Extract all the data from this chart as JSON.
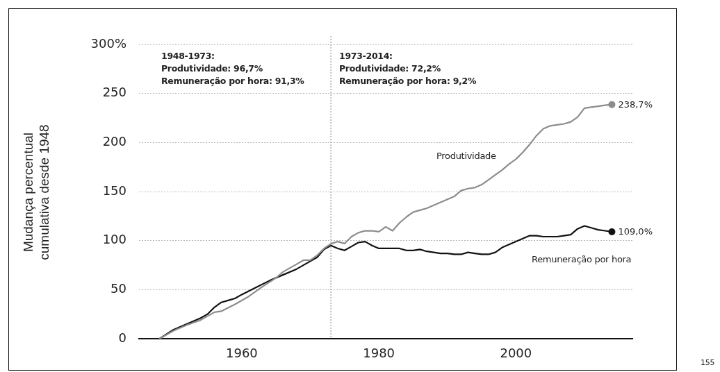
{
  "chart_data": {
    "type": "line",
    "ylabel": "Mudança percentual cumulativa desde 1948",
    "xlim": [
      1945,
      2017
    ],
    "xticks": [
      1960,
      1980,
      2000
    ],
    "ylim": [
      0,
      300
    ],
    "yticks": [
      0,
      50,
      100,
      150,
      200,
      250,
      {
        "value": 300,
        "label": "300%"
      }
    ],
    "grid": "y",
    "legend": false,
    "marker": "none",
    "line_style": "solid",
    "tick_labels": true,
    "ref_lines": [
      {
        "axis": "x",
        "value": 1973,
        "color": "#999999",
        "line_style": "dotted"
      }
    ],
    "annotations": [
      "1948-1973:\nProdutividade: 96,7%\nRemuneração por hora: 91,3%",
      "1973-2014:\nProdutividade: 72,2%\nRemuneração por hora: 9,2%",
      "155"
    ],
    "series": [
      {
        "name": "Produtividade",
        "color": "#8c8c8c",
        "x": [
          1948,
          1950,
          1952,
          1954,
          1956,
          1957,
          1959,
          1961,
          1963,
          1965,
          1966,
          1968,
          1969,
          1970,
          1971,
          1972,
          1973,
          1974,
          1975,
          1976,
          1977,
          1978,
          1979,
          1980,
          1981,
          1982,
          1983,
          1984,
          1985,
          1986,
          1987,
          1988,
          1989,
          1990,
          1991,
          1992,
          1993,
          1994,
          1995,
          1996,
          1997,
          1998,
          1999,
          2000,
          2001,
          2002,
          2003,
          2004,
          2005,
          2006,
          2007,
          2008,
          2009,
          2010,
          2011,
          2012,
          2013,
          2014
        ],
        "values": [
          0,
          8,
          14,
          19,
          27,
          28,
          35,
          43,
          53,
          62,
          68,
          76,
          80,
          80,
          85,
          92,
          96.7,
          99,
          97,
          104,
          108,
          110,
          110,
          109,
          114,
          110,
          118,
          124,
          129,
          131,
          133,
          136,
          139,
          142,
          145,
          151,
          153,
          154,
          157,
          162,
          167,
          172,
          178,
          183,
          190,
          198,
          207,
          214,
          217,
          218,
          219,
          221,
          226,
          235,
          236,
          237,
          238,
          238.7
        ],
        "value_labels": [
          null,
          null,
          null,
          null,
          null,
          null,
          null,
          null,
          null,
          null,
          null,
          null,
          null,
          null,
          null,
          null,
          null,
          null,
          null,
          null,
          null,
          null,
          null,
          null,
          null,
          null,
          null,
          null,
          null,
          null,
          null,
          null,
          null,
          null,
          null,
          null,
          null,
          null,
          null,
          null,
          null,
          null,
          null,
          null,
          null,
          null,
          null,
          null,
          null,
          null,
          null,
          null,
          null,
          null,
          null,
          null,
          null,
          "238,7%"
        ]
      },
      {
        "name": "Remuneração por hora",
        "color": "#111111",
        "x": [
          1948,
          1950,
          1952,
          1954,
          1955,
          1956,
          1957,
          1958,
          1959,
          1960,
          1962,
          1964,
          1966,
          1968,
          1970,
          1971,
          1972,
          1973,
          1974,
          1975,
          1976,
          1977,
          1978,
          1979,
          1980,
          1981,
          1982,
          1983,
          1984,
          1985,
          1986,
          1987,
          1988,
          1989,
          1990,
          1991,
          1992,
          1993,
          1994,
          1995,
          1996,
          1997,
          1998,
          1999,
          2000,
          2001,
          2002,
          2003,
          2004,
          2005,
          2006,
          2007,
          2008,
          2009,
          2010,
          2011,
          2012,
          2013,
          2014
        ],
        "values": [
          0,
          9,
          15,
          21,
          25,
          32,
          37,
          39,
          41,
          45,
          52,
          59,
          65,
          71,
          79,
          83,
          91,
          95,
          92,
          90,
          94,
          98,
          99,
          95,
          92,
          92,
          92,
          92,
          90,
          90,
          91,
          89,
          88,
          87,
          87,
          86,
          86,
          88,
          87,
          86,
          86,
          88,
          93,
          96,
          99,
          102,
          105,
          105,
          104,
          104,
          104,
          105,
          106,
          112,
          115,
          113,
          111,
          110,
          109
        ],
        "value_labels": [
          null,
          null,
          null,
          null,
          null,
          null,
          null,
          null,
          null,
          null,
          null,
          null,
          null,
          null,
          null,
          null,
          null,
          null,
          null,
          null,
          null,
          null,
          null,
          null,
          null,
          null,
          null,
          null,
          null,
          null,
          null,
          null,
          null,
          null,
          null,
          null,
          null,
          null,
          null,
          null,
          null,
          null,
          null,
          null,
          null,
          null,
          null,
          null,
          null,
          null,
          null,
          null,
          null,
          null,
          null,
          null,
          null,
          null,
          "109,0%"
        ]
      }
    ]
  }
}
